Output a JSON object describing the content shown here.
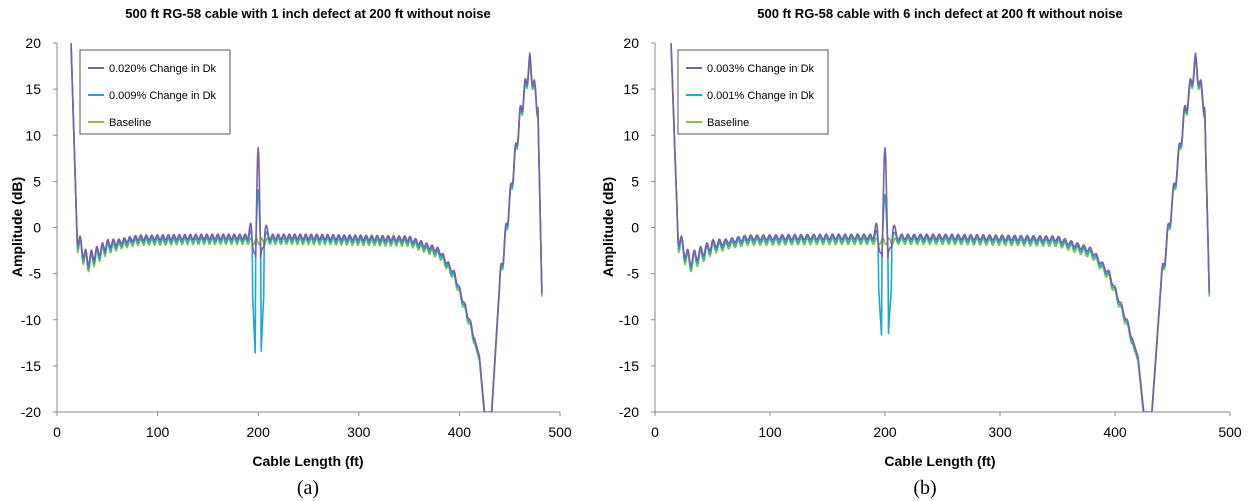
{
  "chart_data": [
    {
      "type": "line",
      "panel_label": "(a)",
      "title": "500 ft RG-58 cable with 1 inch defect at 200 ft without noise",
      "xlabel": "Cable Length (ft)",
      "ylabel": "Amplitude (dB)",
      "xlim": [
        0,
        500
      ],
      "ylim": [
        -20,
        20
      ],
      "xticks": [
        0,
        100,
        200,
        300,
        400,
        500
      ],
      "yticks": [
        -20,
        -15,
        -10,
        -5,
        0,
        5,
        10,
        15,
        20
      ],
      "grid": false,
      "legend": "top-left",
      "series": [
        {
          "name": "0.020% Change in Dk",
          "color": "#7b5ea7",
          "defect_peak_db": 8.8,
          "defect_dip_db": -2.5
        },
        {
          "name": "0.009% Change in Dk",
          "color": "#1ba6d6",
          "defect_peak_db": 4.5,
          "defect_dip_db": -16
        },
        {
          "name": "Baseline",
          "color": "#82c341"
        }
      ],
      "defect_location_ft": 200,
      "profile": {
        "x": [
          14,
          20,
          30,
          50,
          80,
          150,
          250,
          350,
          380,
          395,
          410,
          420,
          425,
          432,
          440,
          450,
          460,
          470,
          478,
          482
        ],
        "y": [
          20,
          -1,
          -3.5,
          -1.8,
          -1.1,
          -1,
          -1,
          -1.2,
          -2.5,
          -5,
          -10,
          -14,
          -20,
          -20,
          -6,
          3,
          12,
          18,
          13,
          -7
        ]
      }
    },
    {
      "type": "line",
      "panel_label": "(b)",
      "title": "500 ft RG-58 cable with 6 inch defect at 200 ft without noise",
      "xlabel": "Cable Length (ft)",
      "ylabel": "Amplitude (dB)",
      "xlim": [
        0,
        500
      ],
      "ylim": [
        -20,
        20
      ],
      "xticks": [
        0,
        100,
        200,
        300,
        400,
        500
      ],
      "yticks": [
        -20,
        -15,
        -10,
        -5,
        0,
        5,
        10,
        15,
        20
      ],
      "grid": false,
      "legend": "top-left",
      "series": [
        {
          "name": "0.003% Change in Dk",
          "color": "#7b5ea7",
          "defect_peak_db": 8.8,
          "defect_dip_db": -2.5
        },
        {
          "name": "0.001% Change in Dk",
          "color": "#1ba6d6",
          "defect_peak_db": 4.0,
          "defect_dip_db": -13.5
        },
        {
          "name": "Baseline",
          "color": "#82c341"
        }
      ],
      "defect_location_ft": 200,
      "profile": {
        "x": [
          14,
          20,
          30,
          50,
          80,
          150,
          250,
          350,
          380,
          395,
          410,
          420,
          425,
          432,
          440,
          450,
          460,
          470,
          478,
          482
        ],
        "y": [
          20,
          -1,
          -3.5,
          -1.8,
          -1.1,
          -1,
          -1,
          -1.2,
          -2.5,
          -5,
          -10,
          -14,
          -20,
          -20,
          -6,
          3,
          12,
          18,
          13,
          -7
        ]
      }
    }
  ]
}
